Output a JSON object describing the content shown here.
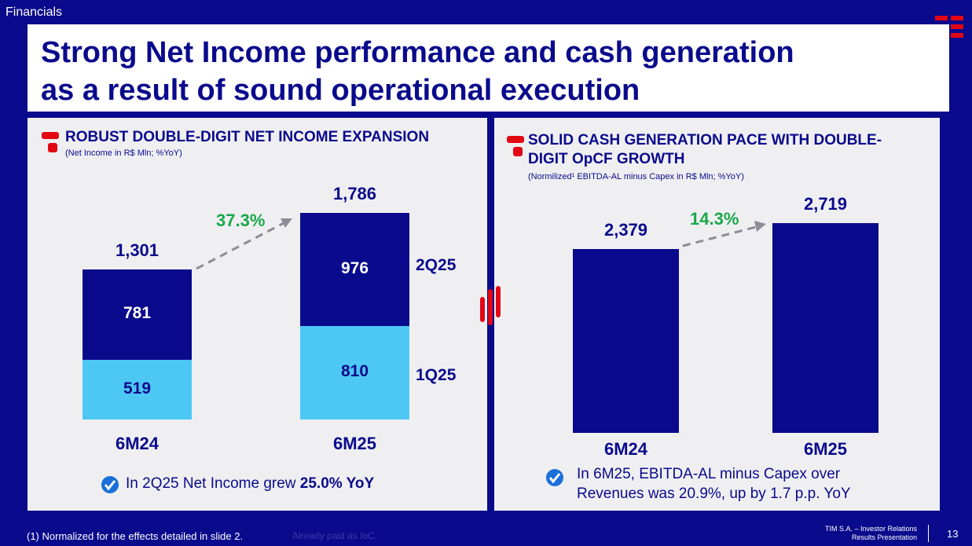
{
  "header": {
    "section": "Financials",
    "title_line1": "Strong Net Income performance and cash generation",
    "title_line2": "as a result of sound operational execution"
  },
  "colors": {
    "navy": "#0a0a8c",
    "light_blue": "#4dc8f5",
    "green": "#1aa84a",
    "red": "#e30613"
  },
  "left_panel": {
    "heading": "ROBUST DOUBLE-DIGIT NET INCOME EXPANSION",
    "subheading": "(Net Income in R$ Mln; %YoY)",
    "growth": "37.3%",
    "legend_top": "2Q25",
    "legend_bottom": "1Q25",
    "note_prefix": "In 2Q25 Net Income grew ",
    "note_bold": "25.0% YoY"
  },
  "right_panel": {
    "heading_line1": "SOLID CASH GENERATION PACE WITH DOUBLE-",
    "heading_line2": "DIGIT OpCF GROWTH",
    "subheading": "(Normilized¹ EBITDA-AL minus Capex in R$ Mln; %YoY)",
    "growth": "14.3%",
    "note_line1": "In 6M25, EBITDA-AL minus Capex over",
    "note_line2": "Revenues was 20.9%, up by 1.7 p.p. YoY"
  },
  "chart_data": [
    {
      "type": "bar",
      "stacked": true,
      "categories": [
        "6M24",
        "6M25"
      ],
      "series": [
        {
          "name": "1Q25",
          "values": [
            519,
            810
          ]
        },
        {
          "name": "2Q25",
          "values": [
            781,
            976
          ]
        }
      ],
      "totals": [
        "1,301",
        "1,786"
      ],
      "segment_labels": {
        "1Q25": [
          "519",
          "810"
        ],
        "2Q25": [
          "781",
          "976"
        ]
      },
      "growth_label": "37.3%",
      "ylim": [
        0,
        1786
      ]
    },
    {
      "type": "bar",
      "categories": [
        "6M24",
        "6M25"
      ],
      "values": [
        2379,
        2719
      ],
      "value_labels": [
        "2,379",
        "2,719"
      ],
      "growth_label": "14.3%",
      "ylim": [
        0,
        2719
      ]
    }
  ],
  "footer": {
    "footnote": "(1)   Normalized for the effects detailed in slide 2.",
    "footnote_ghost": "Already paid as IoC.",
    "company": "TIM S.A. – Investor Relations",
    "doc": "Results Presentation",
    "page": "13"
  }
}
